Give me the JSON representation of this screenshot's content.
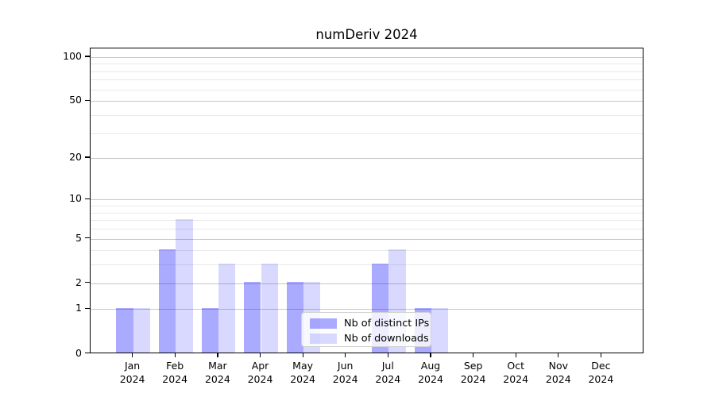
{
  "chart_data": {
    "type": "bar",
    "title": "numDeriv 2024",
    "categories": [
      "Jan 2024",
      "Feb 2024",
      "Mar 2024",
      "Apr 2024",
      "May 2024",
      "Jun 2024",
      "Jul 2024",
      "Aug 2024",
      "Sep 2024",
      "Oct 2024",
      "Nov 2024",
      "Dec 2024"
    ],
    "series": [
      {
        "name": "Nb of distinct IPs",
        "color": "rgba(0,0,255,0.335)",
        "values": [
          1,
          4,
          1,
          2,
          2,
          0,
          3,
          1,
          0,
          0,
          0,
          0
        ]
      },
      {
        "name": "Nb of downloads",
        "color": "rgba(0,0,255,0.15)",
        "values": [
          1,
          7,
          3,
          3,
          2,
          0,
          4,
          1,
          0,
          0,
          0,
          0
        ]
      }
    ],
    "xlabel": "",
    "ylabel": "",
    "y_axis": {
      "scale": "log10(1+x)",
      "major_ticks": [
        0,
        1,
        2,
        5,
        10,
        20,
        50,
        100
      ],
      "minor_gridlines": [
        3,
        4,
        6,
        7,
        8,
        9,
        30,
        40,
        60,
        70,
        80,
        90
      ],
      "ylim": [
        0,
        115
      ]
    },
    "legend": {
      "position": "lower-center-inside"
    },
    "grid": "horizontal",
    "colors": {
      "major_grid": "#c6c6c6",
      "minor_grid": "#e9e9e9",
      "axis": "#000000"
    }
  }
}
